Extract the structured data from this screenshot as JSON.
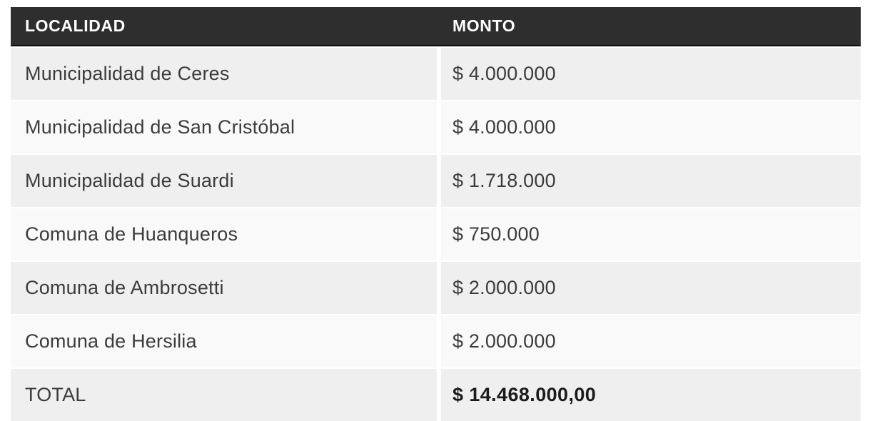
{
  "chart_data": {
    "type": "table",
    "columns": [
      "LOCALIDAD",
      "MONTO"
    ],
    "rows": [
      {
        "localidad": "Municipalidad de Ceres",
        "monto_display": "$ 4.000.000",
        "monto_value": 4000000
      },
      {
        "localidad": "Municipalidad de San Cristóbal",
        "monto_display": "$ 4.000.000",
        "monto_value": 4000000
      },
      {
        "localidad": "Municipalidad de Suardi",
        "monto_display": "$ 1.718.000",
        "monto_value": 1718000
      },
      {
        "localidad": "Comuna de Huanqueros",
        "monto_display": "$ 750.000",
        "monto_value": 750000
      },
      {
        "localidad": "Comuna de Ambrosetti",
        "monto_display": "$ 2.000.000",
        "monto_value": 2000000
      },
      {
        "localidad": "Comuna de Hersilia",
        "monto_display": "$ 2.000.000",
        "monto_value": 2000000
      }
    ],
    "total_row": {
      "localidad": "TOTAL",
      "monto_display": "$ 14.468.000,00",
      "monto_value": 14468000.0
    },
    "layout_hints": {
      "header_style": "dark-bar",
      "row_striping": true,
      "column_gap_visible": true
    }
  },
  "colors": {
    "page_bg": "#ffffff",
    "header_bg": "#2e2e2e",
    "header_text": "#ffffff",
    "row_odd_bg": "#efefef",
    "row_even_bg": "#f9f9f9",
    "body_text": "#3c3c3c",
    "total_text": "#1b1b1b"
  }
}
